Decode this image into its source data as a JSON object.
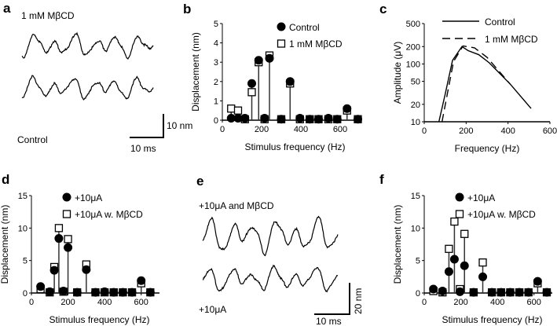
{
  "panel_a": {
    "label": "a",
    "top_label": "1 mM MβCD",
    "bottom_label": "Control",
    "scale_y": "10 nm",
    "scale_x": "10 ms"
  },
  "panel_e": {
    "label": "e",
    "top_label": "+10μA and MβCD",
    "bottom_label": "+10μA",
    "scale_y": "20 nm",
    "scale_x": "10 ms"
  },
  "colors": {
    "ink": "#000000",
    "stem": "#333333"
  },
  "chart_data": [
    {
      "id": "b",
      "label": "b",
      "type": "scatter",
      "xlabel": "Stimulus frequency (Hz)",
      "ylabel": "Displacement (nm)",
      "xlim": [
        0,
        700
      ],
      "ylim": [
        0,
        5
      ],
      "xticks": [
        "0",
        "200",
        "400",
        "600"
      ],
      "yticks": [
        "0",
        "1",
        "2",
        "3",
        "4",
        "5"
      ],
      "legend_position": "top-right",
      "x": [
        45,
        80,
        115,
        150,
        185,
        215,
        240,
        300,
        345,
        395,
        445,
        490,
        540,
        585,
        635,
        690
      ],
      "series": [
        {
          "name": "Control",
          "marker": "circle",
          "values": [
            0.1,
            0.1,
            0.1,
            1.9,
            3.1,
            0.1,
            3.2,
            0.05,
            2.0,
            0.1,
            0.05,
            0.05,
            0.1,
            0.05,
            0.6,
            0.05
          ]
        },
        {
          "name": "1 mM MβCD",
          "marker": "square",
          "values": [
            0.6,
            0.5,
            0.05,
            1.45,
            3.0,
            0.05,
            3.35,
            0.05,
            1.9,
            0.05,
            0.05,
            0.05,
            0.05,
            0.05,
            0.5,
            0.05
          ]
        }
      ]
    },
    {
      "id": "c",
      "label": "c",
      "type": "line",
      "xlabel": "Frequency (Hz)",
      "ylabel": "Amplitude (μV)",
      "xlim": [
        0,
        600
      ],
      "ylim": [
        10,
        500
      ],
      "yscale": "log",
      "xticks": [
        "0",
        "200",
        "400",
        "600"
      ],
      "yticks": [
        "10",
        "20",
        "50",
        "100",
        "200",
        "500"
      ],
      "legend_position": "top-right",
      "series": [
        {
          "name": "Control",
          "style": "solid",
          "x": [
            70,
            100,
            135,
            180,
            210,
            260,
            310,
            410,
            510
          ],
          "values": [
            10,
            30,
            115,
            200,
            170,
            145,
            105,
            45,
            17
          ]
        },
        {
          "name": "1 mM MβCD",
          "style": "dashed",
          "x": [
            85,
            110,
            140,
            185,
            240,
            300,
            350,
            410
          ],
          "values": [
            10,
            30,
            110,
            205,
            190,
            130,
            80,
            45
          ]
        }
      ]
    },
    {
      "id": "d",
      "label": "d",
      "type": "scatter",
      "xlabel": "Stimulus frequency (Hz)",
      "ylabel": "Displacement (nm)",
      "xlim": [
        0,
        700
      ],
      "ylim": [
        0,
        15
      ],
      "xticks": [
        "0",
        "200",
        "400",
        "600"
      ],
      "yticks": [
        "0",
        "5",
        "10",
        "15"
      ],
      "legend_position": "top-right",
      "x": [
        50,
        100,
        125,
        150,
        175,
        200,
        250,
        300,
        350,
        400,
        450,
        500,
        550,
        600,
        650
      ],
      "series": [
        {
          "name": "+10μA",
          "marker": "circle",
          "values": [
            1.0,
            0.2,
            3.5,
            8.4,
            0.3,
            7.0,
            0.1,
            3.6,
            0.1,
            0.2,
            0.1,
            0.1,
            0.1,
            1.9,
            0.1
          ]
        },
        {
          "name": "+10μA w. MβCD",
          "marker": "square",
          "values": [
            0.6,
            0.1,
            4.0,
            10.0,
            0.2,
            8.3,
            0.1,
            4.4,
            0.1,
            0.1,
            0.1,
            0.1,
            0.1,
            1.5,
            0.1
          ]
        }
      ]
    },
    {
      "id": "f",
      "label": "f",
      "type": "scatter",
      "xlabel": "Stimulus frequency (Hz)",
      "ylabel": "Displacement (nm)",
      "xlim": [
        0,
        700
      ],
      "ylim": [
        0,
        15
      ],
      "xticks": [
        "0",
        "200",
        "400",
        "600"
      ],
      "yticks": [
        "0",
        "5",
        "10",
        "15"
      ],
      "legend_position": "top-right",
      "x": [
        50,
        100,
        135,
        165,
        195,
        220,
        270,
        320,
        370,
        420,
        470,
        520,
        570,
        620,
        670
      ],
      "series": [
        {
          "name": "+10μA",
          "marker": "circle",
          "values": [
            0.6,
            0.3,
            3.3,
            5.2,
            0.2,
            4.2,
            0.1,
            2.5,
            0.1,
            0.1,
            0.1,
            0.1,
            0.1,
            1.8,
            0.1
          ]
        },
        {
          "name": "+10μA w. MβCD",
          "marker": "square",
          "values": [
            0.3,
            0.1,
            6.8,
            11.0,
            0.6,
            9.1,
            0.1,
            4.7,
            0.1,
            0.1,
            0.1,
            0.1,
            0.1,
            1.5,
            0.1
          ]
        }
      ]
    }
  ]
}
